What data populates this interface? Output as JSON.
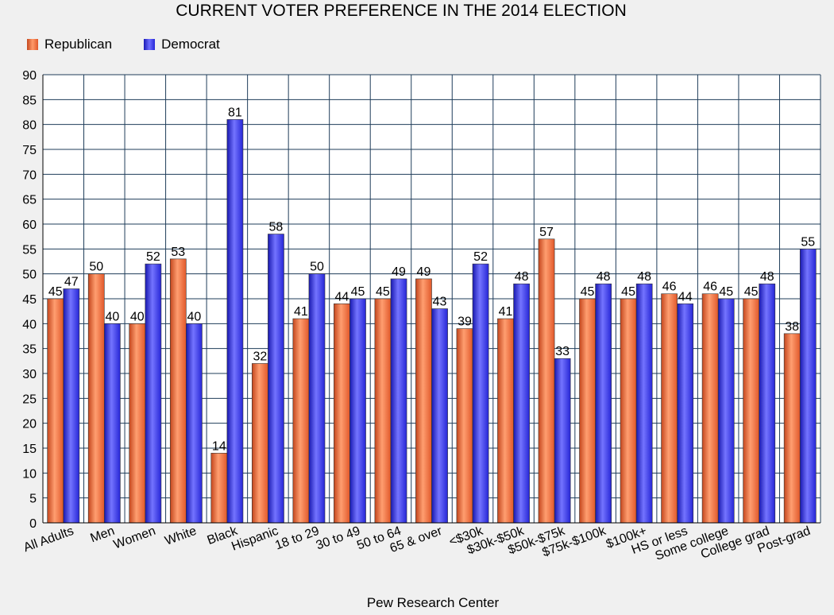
{
  "chart_data": {
    "type": "bar",
    "title": "CURRENT VOTER PREFERENCE IN THE 2014 ELECTION",
    "source": "Pew Research Center",
    "categories": [
      "All Adults",
      "Men",
      "Women",
      "White",
      "Black",
      "Hispanic",
      "18 to 29",
      "30 to 49",
      "50 to 64",
      "65 & over",
      "<$30k",
      "$30k-$50k",
      "$50k-$75k",
      "$75k-$100k",
      "$100k+",
      "HS or less",
      "Some college",
      "College grad",
      "Post-grad"
    ],
    "series": [
      {
        "name": "Republican",
        "color": "#e8602f",
        "values": [
          45,
          50,
          40,
          53,
          14,
          32,
          41,
          44,
          45,
          49,
          39,
          41,
          57,
          45,
          45,
          46,
          46,
          45,
          38
        ]
      },
      {
        "name": "Democrat",
        "color": "#2f2fe0",
        "values": [
          47,
          40,
          52,
          40,
          81,
          58,
          50,
          45,
          49,
          43,
          52,
          48,
          33,
          48,
          48,
          44,
          45,
          48,
          55
        ]
      }
    ],
    "ylim": [
      0,
      90
    ],
    "ytick_step": 5,
    "grid": true,
    "legend_position": "top-left",
    "data_labels": true
  }
}
